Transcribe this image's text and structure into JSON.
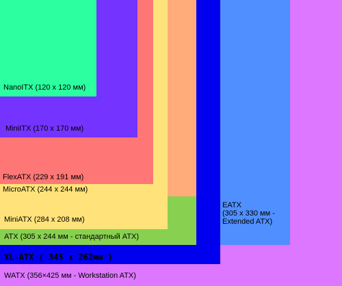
{
  "boards": [
    {
      "id": "watx",
      "label": "WATX (356×425 мм - Workstation ATX)",
      "color": "#dd77ff"
    },
    {
      "id": "eatx",
      "label": "EATX\n(305 x 330 мм -\nExtended ATX)",
      "color": "#4f8fff"
    },
    {
      "id": "xlatx",
      "label": "XL-ATX  ( 345 x 262мм )",
      "color": "#0000ee"
    },
    {
      "id": "atx",
      "label": "ATX (305 x 244 мм - стандартный ATX)",
      "color": "#88d150"
    },
    {
      "id": "microatx",
      "label": "MicroATX (244 x 244 мм)",
      "color": "#ffab7a"
    },
    {
      "id": "miniatx",
      "label": "MiniATX (284 x 208 мм)",
      "color": "#ffe37a"
    },
    {
      "id": "flexatx",
      "label": "FlexATX (229 x 191 мм)",
      "color": "#ff7676"
    },
    {
      "id": "miniitx",
      "label": "MiniITX (170 x 170 мм)",
      "color": "#7433ff"
    },
    {
      "id": "nanoitx",
      "label": "NanoITX (120 x 120 мм)",
      "color": "#2bff9f"
    }
  ]
}
